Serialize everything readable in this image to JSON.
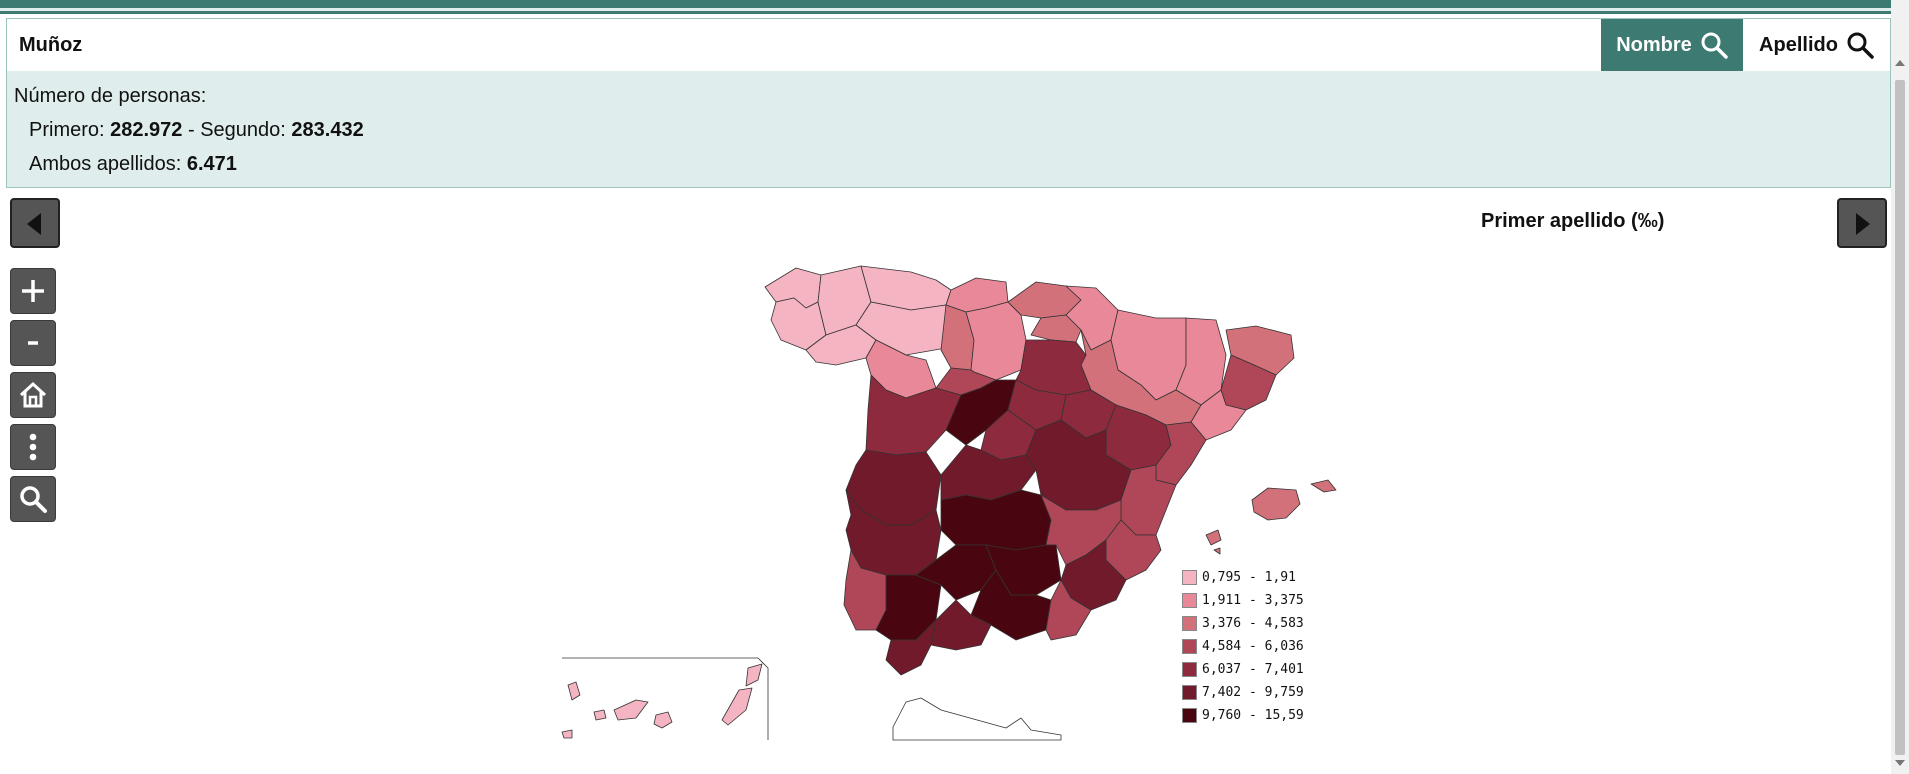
{
  "search": {
    "value": "Muñoz",
    "nombre_label": "Nombre",
    "apellido_label": "Apellido"
  },
  "stats": {
    "heading": "Número de personas:",
    "primero_label": "Primero: ",
    "primero_value": "282.972",
    "separator": " - Segundo: ",
    "segundo_value": "283.432",
    "ambos_label": "Ambos apellidos: ",
    "ambos_value": "6.471"
  },
  "map": {
    "title": "Primer apellido (‰)",
    "legend": [
      {
        "label": "0,795 - 1,91",
        "color": "#f5b4c2"
      },
      {
        "label": "1,911 - 3,375",
        "color": "#e98898"
      },
      {
        "label": "3,376 - 4,583",
        "color": "#d2717a"
      },
      {
        "label": "4,584 - 6,036",
        "color": "#b04758"
      },
      {
        "label": "6,037 - 7,401",
        "color": "#8e2a3e"
      },
      {
        "label": "7,402 - 9,759",
        "color": "#701a2c"
      },
      {
        "label": "9,760 - 15,59",
        "color": "#4a0610"
      }
    ]
  },
  "tools": [
    "zoom-in",
    "zoom-out",
    "home",
    "more",
    "search"
  ]
}
